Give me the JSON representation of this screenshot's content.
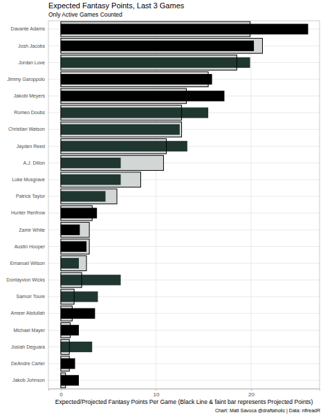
{
  "chart_data": {
    "type": "bar",
    "orientation": "horizontal",
    "title": "Expected Fantasy Points, Last 3 Games",
    "subtitle": "Only Active Games Counted",
    "x_label": "Expected/Projected Fantasy Points Per Game (Black Line & faint bar represents Projected Points)",
    "caption": "Chart: Matt Savoca @draftaholic | Data: nflreadR",
    "categories": [
      "Davante Adams",
      "Josh Jacobs",
      "Jordan Love",
      "Jimmy Garoppolo",
      "Jakobi Meyers",
      "Romeo Doubs",
      "Christian Watson",
      "Jayden Reed",
      "A.J. Dillon",
      "Luke Musgrave",
      "Patrick Taylor",
      "Hunter Renfrow",
      "Zamir White",
      "Austin Hooper",
      "Emanuel Wilson",
      "Dontayvion Wicks",
      "Samori Toure",
      "Ameer Abdullah",
      "Michael Mayer",
      "Josiah Deguara",
      "DeAndre Carter",
      "Jakob Johnson"
    ],
    "series": [
      {
        "color": "#d2d6d4",
        "values": [
          19.9,
          21.2,
          18.5,
          15.5,
          13.2,
          12.7,
          12.7,
          11.1,
          10.8,
          8.4,
          5.9,
          3.3,
          3.0,
          3.0,
          2.7,
          2.2,
          1.4,
          1.2,
          1.0,
          0.9,
          0.9,
          0.5
        ]
      },
      {
        "colors": [
          "#000000",
          "#000000",
          "#203731",
          "#000000",
          "#000000",
          "#203731",
          "#203731",
          "#203731",
          "#203731",
          "#203731",
          "#203731",
          "#000000",
          "#000000",
          "#000000",
          "#203731",
          "#203731",
          "#203731",
          "#000000",
          "#000000",
          "#203731",
          "#000000",
          "#000000"
        ],
        "values": [
          26.0,
          20.3,
          19.9,
          15.9,
          17.2,
          15.5,
          12.5,
          13.3,
          6.3,
          6.3,
          4.7,
          3.8,
          2.0,
          2.7,
          1.9,
          6.3,
          3.9,
          3.6,
          1.9,
          3.3,
          1.5,
          1.9
        ]
      }
    ],
    "xlim": [
      -1.3,
      27.2
    ],
    "xticks": [
      0,
      10,
      20
    ],
    "grid": true
  }
}
